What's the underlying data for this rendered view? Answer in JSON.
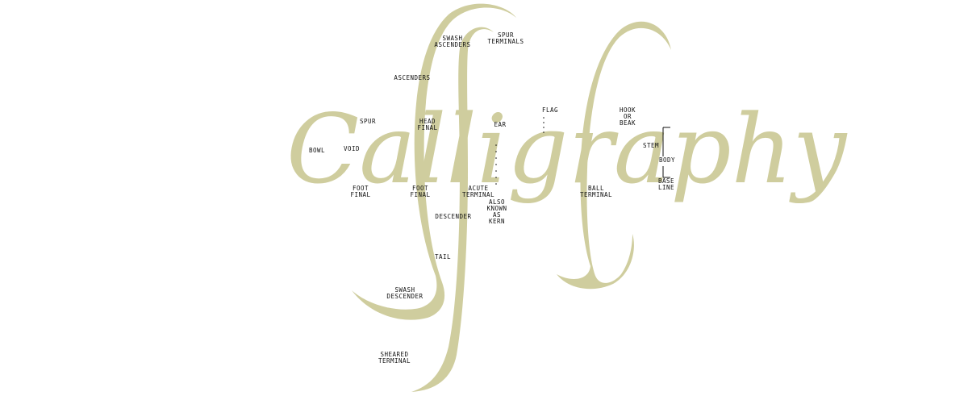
{
  "colors": {
    "ink": "#cfcd9e",
    "label": "#111111",
    "background": "#ffffff"
  },
  "word": "Calligraphy",
  "labels": {
    "swash_ascenders": "SWASH\nASCENDERS",
    "spur_terminals": "SPUR\nTERMINALS",
    "ascenders": "ASCENDERS",
    "flag": "FLAG",
    "hook_or_beak": "HOOK\nOR\nBEAK",
    "spur": "SPUR",
    "head_final": "HEAD\nFINAL",
    "ear": "EAR",
    "bowl": "BOWL",
    "void": "VOID",
    "stem": "STEM",
    "body": "BODY",
    "base_line": "BASE\nLINE",
    "foot_final_left": "FOOT\nFINAL",
    "foot_final_right": "FOOT\nFINAL",
    "acute_terminal": "ACUTE\nTERMINAL",
    "ball_terminal": "BALL\nTERMINAL",
    "also_known_as_kern": "ALSO\nKNOWN\nAS\nKERN",
    "descender": "DESCENDER",
    "tail": "TAIL",
    "swash_descender": "SWASH\nDESCENDER",
    "sheared_terminal": "SHEARED\nTERMINAL"
  }
}
